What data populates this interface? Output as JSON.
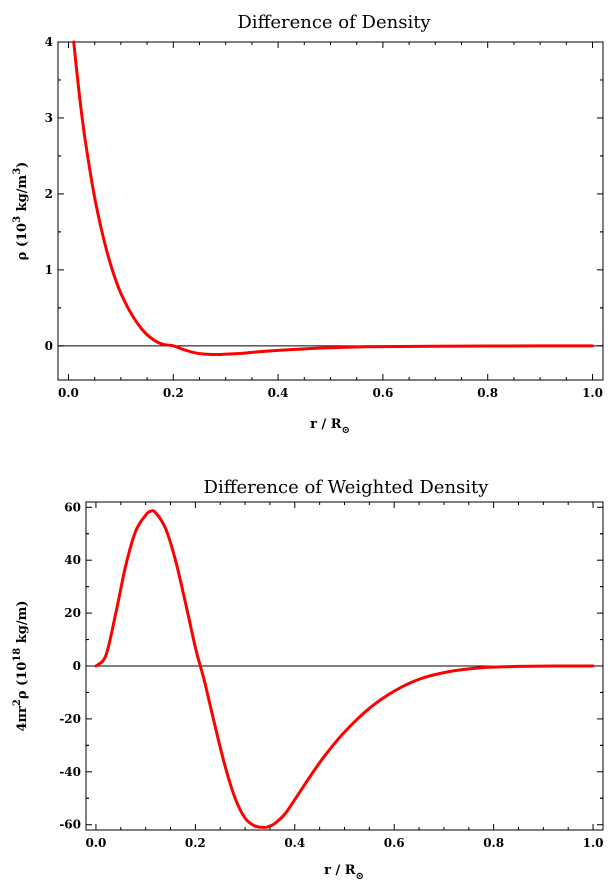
{
  "chart_data": [
    {
      "type": "line",
      "title": "Difference of Density",
      "xlabel": "r / R",
      "xlabel_sub": "⊙",
      "ylabel": "ρ (10",
      "ylabel_sup": "3",
      "ylabel_unit": " kg/m",
      "ylabel_unit_sup": "3",
      "ylabel_end": ")",
      "xlim": [
        -0.02,
        1.02
      ],
      "ylim": [
        -0.45,
        4.0
      ],
      "x_ticks": [
        0.0,
        0.2,
        0.4,
        0.6,
        0.8,
        1.0
      ],
      "x_tick_labels": [
        "0.0",
        "0.2",
        "0.4",
        "0.6",
        "0.8",
        "1.0"
      ],
      "y_ticks": [
        0,
        1,
        2,
        3,
        4
      ],
      "y_tick_labels": [
        "0",
        "1",
        "2",
        "3",
        "4"
      ],
      "zero_line": true,
      "color": "#ff0000",
      "series": [
        {
          "x": [
            0.01,
            0.02,
            0.03,
            0.04,
            0.05,
            0.06,
            0.07,
            0.08,
            0.09,
            0.1,
            0.12,
            0.14,
            0.16,
            0.18,
            0.2,
            0.22,
            0.24,
            0.26,
            0.28,
            0.3,
            0.33,
            0.36,
            0.4,
            0.45,
            0.5,
            0.55,
            0.6,
            0.7,
            0.8,
            0.9,
            1.0
          ],
          "y": [
            4.0,
            3.35,
            2.8,
            2.35,
            1.95,
            1.62,
            1.33,
            1.08,
            0.87,
            0.69,
            0.42,
            0.22,
            0.09,
            0.02,
            0.0,
            -0.05,
            -0.09,
            -0.11,
            -0.115,
            -0.11,
            -0.1,
            -0.08,
            -0.06,
            -0.04,
            -0.025,
            -0.015,
            -0.01,
            -0.005,
            -0.002,
            -0.001,
            0.0
          ]
        }
      ]
    },
    {
      "type": "line",
      "title": "Difference of Weighted Density",
      "xlabel": "r / R",
      "xlabel_sub": "⊙",
      "ylabel": "4πr",
      "ylabel_sup": "2",
      "ylabel_unit": "ρ (10",
      "ylabel_unit_sup": "18",
      "ylabel_end": " kg/m)",
      "xlim": [
        -0.02,
        1.02
      ],
      "ylim": [
        -62,
        62
      ],
      "x_ticks": [
        0.0,
        0.2,
        0.4,
        0.6,
        0.8,
        1.0
      ],
      "x_tick_labels": [
        "0.0",
        "0.2",
        "0.4",
        "0.6",
        "0.8",
        "1.0"
      ],
      "y_ticks": [
        -60,
        -40,
        -20,
        0,
        20,
        40,
        60
      ],
      "y_tick_labels": [
        "-60",
        "-40",
        "-20",
        "0",
        "20",
        "40",
        "60"
      ],
      "zero_line": true,
      "color": "#ff0000",
      "series": [
        {
          "x": [
            0.0,
            0.02,
            0.04,
            0.06,
            0.08,
            0.1,
            0.11,
            0.12,
            0.14,
            0.16,
            0.18,
            0.2,
            0.21,
            0.22,
            0.24,
            0.26,
            0.28,
            0.3,
            0.32,
            0.34,
            0.35,
            0.36,
            0.38,
            0.4,
            0.43,
            0.46,
            0.5,
            0.55,
            0.6,
            0.65,
            0.7,
            0.75,
            0.8,
            0.85,
            0.9,
            0.95,
            1.0
          ],
          "y": [
            0.0,
            4.0,
            20.0,
            38.0,
            51.0,
            57.0,
            58.5,
            58.0,
            52.0,
            40.0,
            24.0,
            7.0,
            0.0,
            -7.0,
            -23.0,
            -38.0,
            -50.0,
            -57.5,
            -60.5,
            -61.0,
            -60.5,
            -59.5,
            -56.0,
            -50.5,
            -42.0,
            -34.0,
            -25.0,
            -16.0,
            -9.5,
            -5.0,
            -2.5,
            -1.1,
            -0.4,
            -0.15,
            -0.05,
            0.0,
            0.0
          ]
        }
      ]
    }
  ]
}
